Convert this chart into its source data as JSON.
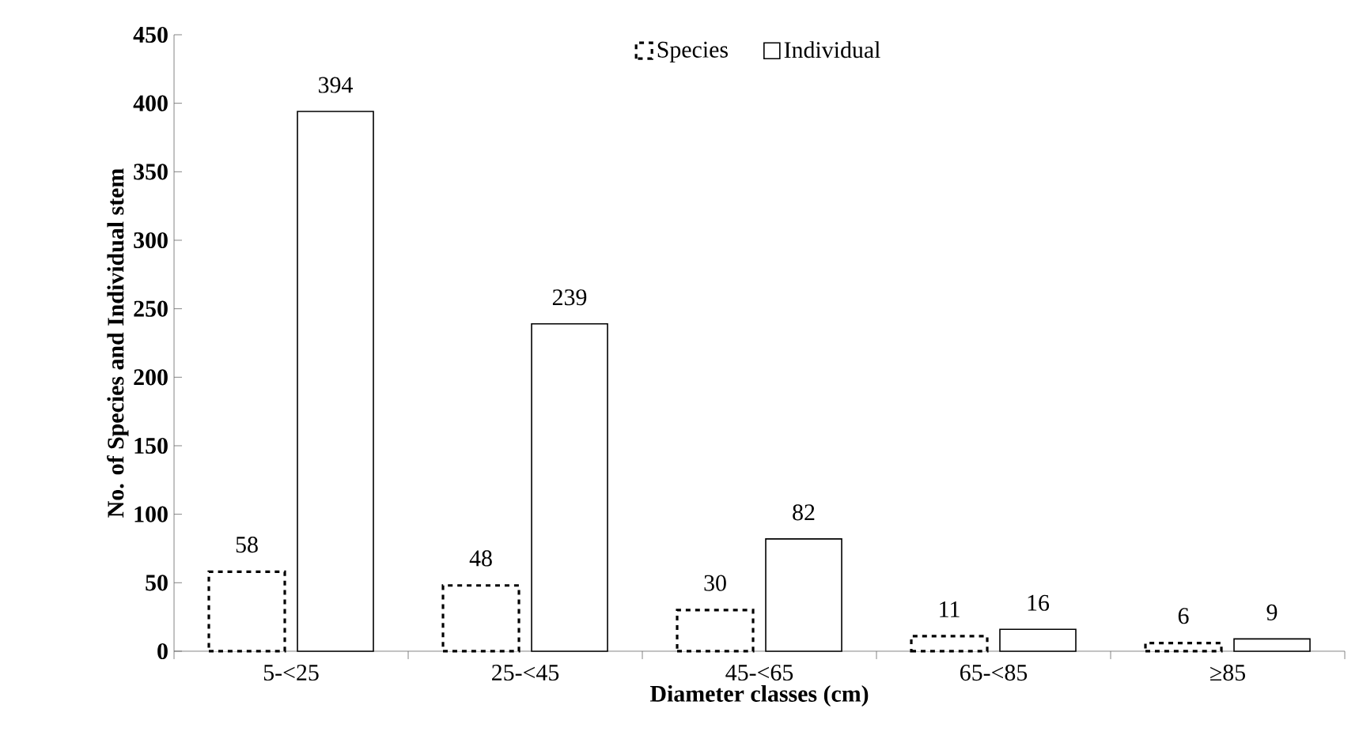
{
  "chart_data": {
    "type": "bar",
    "xlabel": "Diameter classes (cm)",
    "ylabel": "No. of Species and Individual stem",
    "categories": [
      "5-<25",
      "25-<45",
      "45-<65",
      "65-<85",
      "≥85"
    ],
    "series": [
      {
        "name": "Species",
        "color": "#000000",
        "line_style": "dashed",
        "values": [
          58,
          48,
          30,
          11,
          6
        ]
      },
      {
        "name": "Individual",
        "color": "#000000",
        "line_style": "solid",
        "values": [
          394,
          239,
          82,
          16,
          9
        ]
      }
    ],
    "ylim": [
      0,
      450
    ],
    "yticks": [
      0,
      50,
      100,
      150,
      200,
      250,
      300,
      350,
      400,
      450
    ],
    "grid": false,
    "legend": "top",
    "data_labels": true
  }
}
